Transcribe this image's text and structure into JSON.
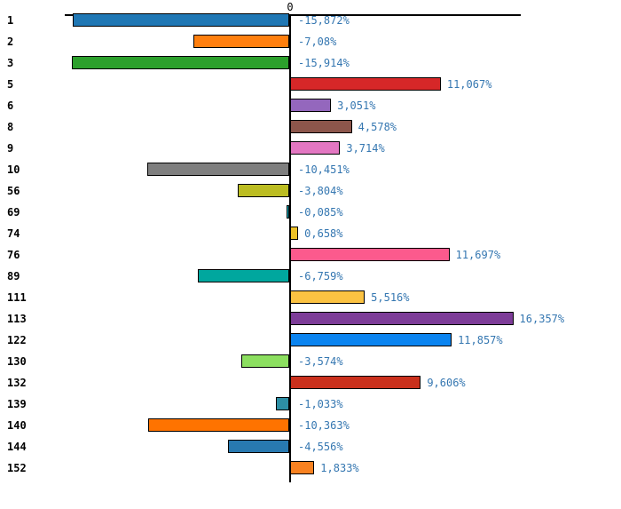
{
  "chart_data": {
    "type": "bar",
    "orientation": "horizontal",
    "title": "",
    "xlabel": "",
    "ylabel": "",
    "grid": false,
    "legend": false,
    "value_axis": {
      "position": "top",
      "ticks": [
        "0"
      ],
      "zero_tick_label": "0",
      "range": [
        -16.5,
        16.9
      ]
    },
    "categories": [
      "1",
      "2",
      "3",
      "5",
      "6",
      "8",
      "9",
      "10",
      "56",
      "69",
      "74",
      "76",
      "89",
      "111",
      "113",
      "122",
      "130",
      "132",
      "139",
      "140",
      "144",
      "152"
    ],
    "values": [
      -15.872,
      -7.08,
      -15.914,
      11.067,
      3.051,
      4.578,
      3.714,
      -10.451,
      -3.804,
      -0.085,
      0.658,
      11.697,
      -6.759,
      5.516,
      16.357,
      11.857,
      -3.574,
      9.606,
      -1.033,
      -10.363,
      -4.556,
      1.833
    ],
    "value_labels": [
      "-15,872%",
      "-7,08%",
      "-15,914%",
      "11,067%",
      "3,051%",
      "4,578%",
      "3,714%",
      "-10,451%",
      "-3,804%",
      "-0,085%",
      "0,658%",
      "11,697%",
      "-6,759%",
      "5,516%",
      "16,357%",
      "11,857%",
      "-3,574%",
      "9,606%",
      "-1,033%",
      "-10,363%",
      "-4,556%",
      "1,833%"
    ],
    "bar_colors": [
      "#1f77b4",
      "#ff7f0e",
      "#2ca02c",
      "#d62728",
      "#9467bd",
      "#8c564b",
      "#e377c2",
      "#7f7f7f",
      "#bcbd22",
      "#17becf",
      "#eec228",
      "#fc5a8d",
      "#00a79e",
      "#fbc242",
      "#7d3c98",
      "#0b84f0",
      "#8cdf60",
      "#ca301c",
      "#2d8fa5",
      "#fe7300",
      "#2879b0",
      "#f98221"
    ],
    "bar_edge_color": "#000000",
    "value_label_color": "#3577b1",
    "category_label_color": "#000000"
  }
}
